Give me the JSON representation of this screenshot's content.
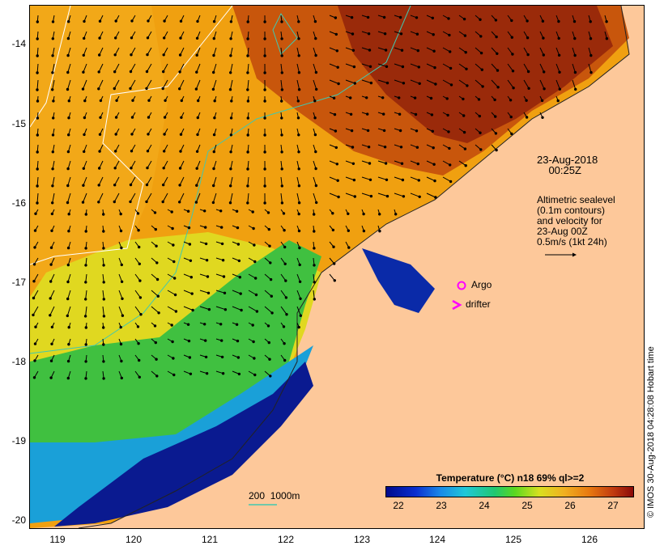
{
  "title_time": "23-Aug-2018\n    00:25Z",
  "altimetry_note": "Altimetric sealevel\n(0.1m contours)\nand velocity for\n23-Aug 00Z\n0.5m/s (1kt 24h)",
  "legend": {
    "argo_label": "Argo",
    "drifter_label": "drifter",
    "argo_color": "#ff00ff",
    "drifter_color": "#ff00ff"
  },
  "bathy_label": "200  1000m",
  "colorbar": {
    "title": "Temperature (°C) n18 69% ql>=2",
    "ticks": [
      "22",
      "23",
      "24",
      "25",
      "26",
      "27"
    ]
  },
  "credit": "© IMOS 30-Aug-2018 04:28:08 Hobart time",
  "axes": {
    "lat_labels": [
      "-14",
      "-15",
      "-16",
      "-17",
      "-18",
      "-19",
      "-20"
    ],
    "lon_labels": [
      "119",
      "120",
      "121",
      "122",
      "123",
      "124",
      "125",
      "126"
    ]
  },
  "colors": {
    "land": "#fdc89a",
    "hot": "#9a2a0a",
    "cold": "#0a1a90",
    "contour_200m": "#40c8b0",
    "contour_1000m": "#ffffff",
    "arrows": "#000000"
  }
}
